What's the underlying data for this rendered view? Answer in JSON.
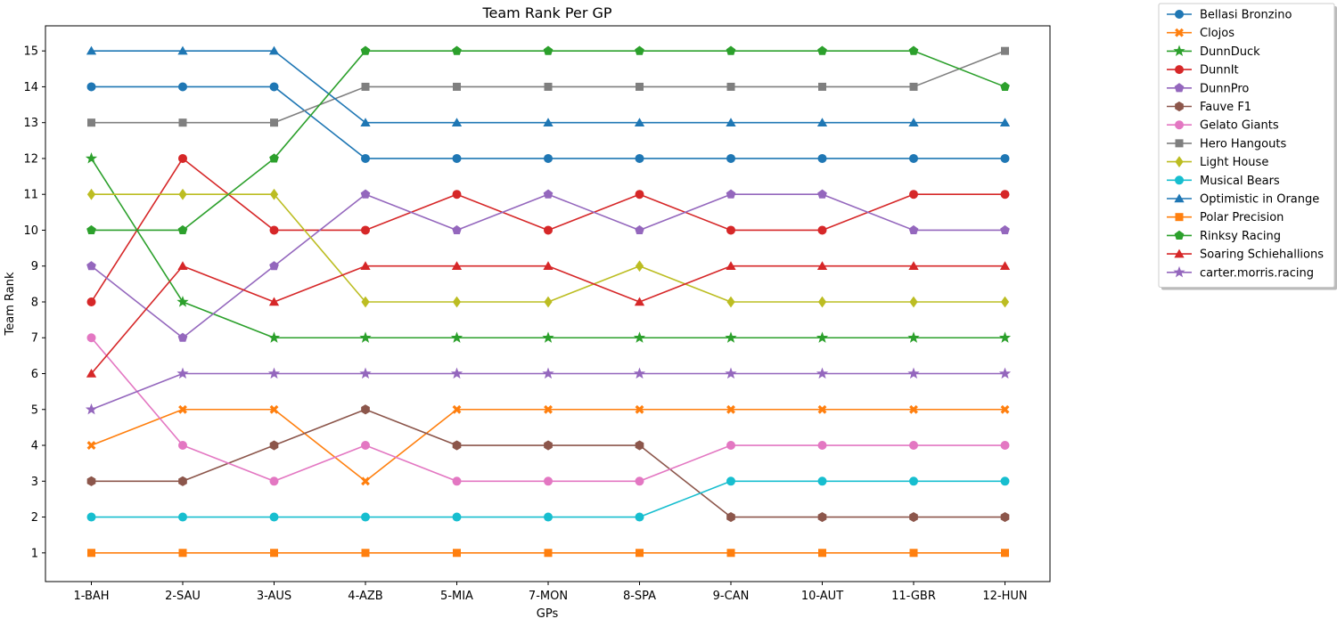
{
  "chart_data": {
    "type": "line",
    "title": "Team Rank Per GP",
    "xlabel": "GPs",
    "ylabel": "Team Rank",
    "categories": [
      "1-BAH",
      "2-SAU",
      "3-AUS",
      "4-AZB",
      "5-MIA",
      "7-MON",
      "8-SPA",
      "9-CAN",
      "10-AUT",
      "11-GBR",
      "12-HUN"
    ],
    "yticks": [
      1,
      2,
      3,
      4,
      5,
      6,
      7,
      8,
      9,
      10,
      11,
      12,
      13,
      14,
      15
    ],
    "ylim": [
      0.2,
      15.7
    ],
    "grid": false,
    "legend_position": "outside-right",
    "series": [
      {
        "name": "Bellasi Bronzino",
        "color": "#1f77b4",
        "marker": "circle",
        "values": [
          14,
          14,
          14,
          12,
          12,
          12,
          12,
          12,
          12,
          12,
          12
        ]
      },
      {
        "name": "Clojos",
        "color": "#ff7f0e",
        "marker": "x",
        "values": [
          4,
          5,
          5,
          3,
          5,
          5,
          5,
          5,
          5,
          5,
          5
        ]
      },
      {
        "name": "DunnDuck",
        "color": "#2ca02c",
        "marker": "star",
        "values": [
          12,
          8,
          7,
          7,
          7,
          7,
          7,
          7,
          7,
          7,
          7
        ]
      },
      {
        "name": "DunnIt",
        "color": "#d62728",
        "marker": "circle",
        "values": [
          8,
          12,
          10,
          10,
          11,
          10,
          11,
          10,
          10,
          11,
          11
        ]
      },
      {
        "name": "DunnPro",
        "color": "#9467bd",
        "marker": "pentagon",
        "values": [
          9,
          7,
          9,
          11,
          10,
          11,
          10,
          11,
          11,
          10,
          10
        ]
      },
      {
        "name": "Fauve F1",
        "color": "#8c564b",
        "marker": "hexagon",
        "values": [
          3,
          3,
          4,
          5,
          4,
          4,
          4,
          2,
          2,
          2,
          2
        ]
      },
      {
        "name": "Gelato Giants",
        "color": "#e377c2",
        "marker": "circle",
        "values": [
          7,
          4,
          3,
          4,
          3,
          3,
          3,
          4,
          4,
          4,
          4
        ]
      },
      {
        "name": "Hero Hangouts",
        "color": "#7f7f7f",
        "marker": "square",
        "values": [
          13,
          13,
          13,
          14,
          14,
          14,
          14,
          14,
          14,
          14,
          15
        ]
      },
      {
        "name": "Light House",
        "color": "#bcbd22",
        "marker": "diamond",
        "values": [
          11,
          11,
          11,
          8,
          8,
          8,
          9,
          8,
          8,
          8,
          8
        ]
      },
      {
        "name": "Musical Bears",
        "color": "#17becf",
        "marker": "circle",
        "values": [
          2,
          2,
          2,
          2,
          2,
          2,
          2,
          3,
          3,
          3,
          3
        ]
      },
      {
        "name": "Optimistic in Orange",
        "color": "#1f77b4",
        "marker": "triangle",
        "values": [
          15,
          15,
          15,
          13,
          13,
          13,
          13,
          13,
          13,
          13,
          13
        ]
      },
      {
        "name": "Polar Precision",
        "color": "#ff7f0e",
        "marker": "square",
        "values": [
          1,
          1,
          1,
          1,
          1,
          1,
          1,
          1,
          1,
          1,
          1
        ]
      },
      {
        "name": "Rinksy Racing",
        "color": "#2ca02c",
        "marker": "pentagon",
        "values": [
          10,
          10,
          12,
          15,
          15,
          15,
          15,
          15,
          15,
          15,
          14
        ]
      },
      {
        "name": "Soaring Schiehallions",
        "color": "#d62728",
        "marker": "triangle",
        "values": [
          6,
          9,
          8,
          9,
          9,
          9,
          8,
          9,
          9,
          9,
          9
        ]
      },
      {
        "name": "carter.morris.racing",
        "color": "#9467bd",
        "marker": "star",
        "values": [
          5,
          6,
          6,
          6,
          6,
          6,
          6,
          6,
          6,
          6,
          6
        ]
      }
    ]
  }
}
